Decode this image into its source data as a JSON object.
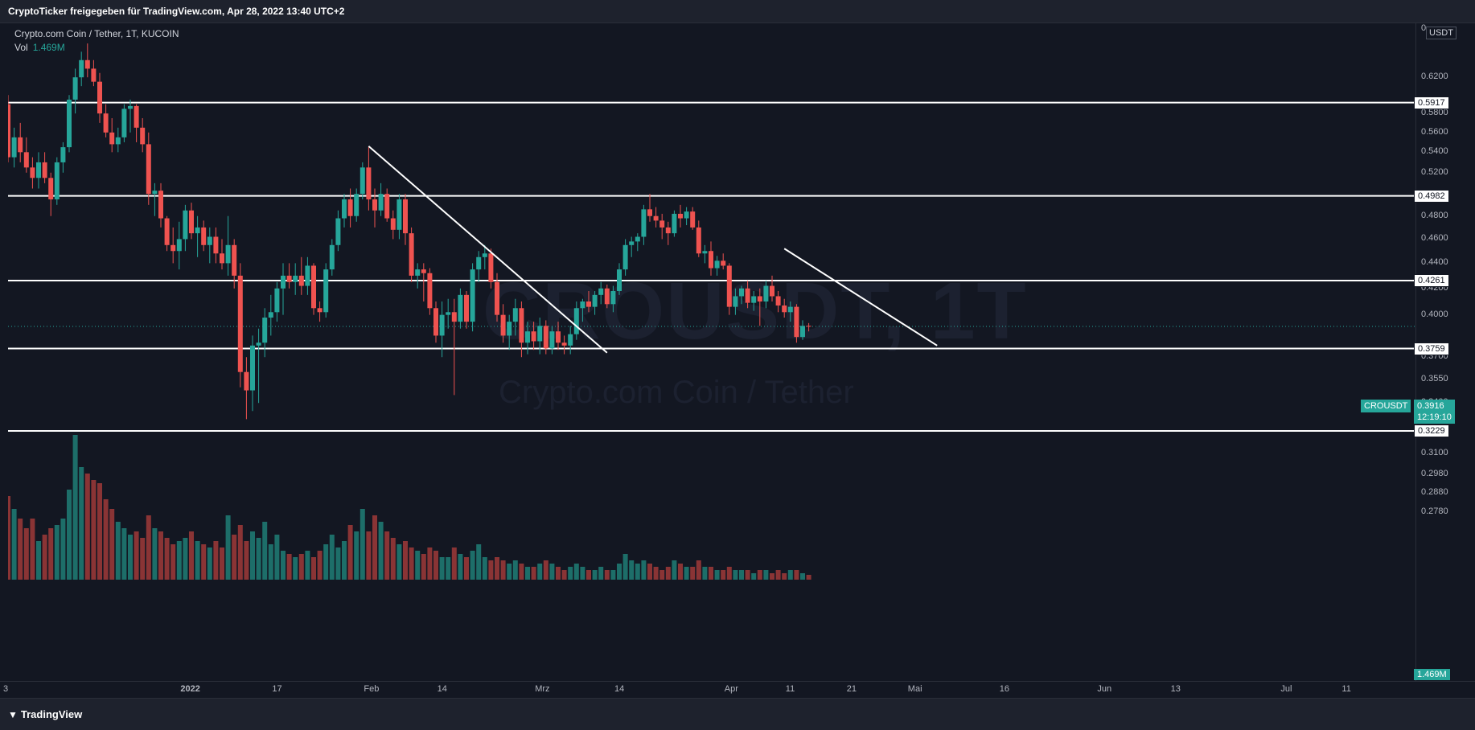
{
  "header": {
    "title": "CryptoTicker freigegeben für TradingView.com, Apr 28, 2022 13:40 UTC+2"
  },
  "legend": {
    "symbol_line": "Crypto.com Coin / Tether, 1T, KUCOIN",
    "vol_label": "Vol",
    "vol_value": "1.469M"
  },
  "watermark": {
    "big": "CROUSDT, 1T",
    "small": "Crypto.com Coin / Tether"
  },
  "axis": {
    "currency": "USDT",
    "top_partial": "0"
  },
  "current": {
    "symbol": "CROUSDT",
    "price": "0.3916",
    "countdown": "12:19:10",
    "volume": "1.469M"
  },
  "footer": {
    "brand": "TradingView"
  },
  "colors": {
    "up": "#26a69a",
    "down": "#ef5350",
    "bg": "#131722",
    "line": "#ffffff"
  },
  "chart_data": {
    "type": "candlestick",
    "symbol": "CROUSDT",
    "interval": "1T",
    "y_scale": "log",
    "y_ticks": [
      "0.6200",
      "0.5800",
      "0.5600",
      "0.5400",
      "0.5200",
      "0.4800",
      "0.4600",
      "0.4400",
      "0.4200",
      "0.4000",
      "0.3700",
      "0.3550",
      "0.3400",
      "0.3100",
      "0.2980",
      "0.2880",
      "0.2780"
    ],
    "x_ticks": [
      {
        "label": "3",
        "day": 0
      },
      {
        "label": "2022",
        "day": 29
      },
      {
        "label": "17",
        "day": 44
      },
      {
        "label": "Feb",
        "day": 59
      },
      {
        "label": "14",
        "day": 71
      },
      {
        "label": "Mrz",
        "day": 87
      },
      {
        "label": "14",
        "day": 100
      },
      {
        "label": "Apr",
        "day": 118
      },
      {
        "label": "11",
        "day": 128
      },
      {
        "label": "21",
        "day": 138
      },
      {
        "label": "Mai",
        "day": 148
      },
      {
        "label": "16",
        "day": 163
      },
      {
        "label": "Jun",
        "day": 179
      },
      {
        "label": "13",
        "day": 191
      },
      {
        "label": "Jul",
        "day": 209
      },
      {
        "label": "11",
        "day": 219
      }
    ],
    "horizontal_levels": [
      "0.5917",
      "0.4982",
      "0.4261",
      "0.3759",
      "0.3229"
    ],
    "trendlines": [
      {
        "from": {
          "day": 59,
          "price": 0.546
        },
        "to": {
          "day": 98,
          "price": 0.373
        }
      },
      {
        "from": {
          "day": 127,
          "price": 0.452
        },
        "to": {
          "day": 152,
          "price": 0.378
        }
      }
    ],
    "candles": [
      [
        0.59,
        0.6,
        0.53,
        0.535,
        2.6
      ],
      [
        0.535,
        0.565,
        0.525,
        0.555,
        2.2
      ],
      [
        0.555,
        0.57,
        0.53,
        0.54,
        1.9
      ],
      [
        0.54,
        0.555,
        0.52,
        0.525,
        1.6
      ],
      [
        0.525,
        0.535,
        0.505,
        0.515,
        1.9
      ],
      [
        0.515,
        0.54,
        0.505,
        0.53,
        1.2
      ],
      [
        0.53,
        0.54,
        0.51,
        0.515,
        1.4
      ],
      [
        0.515,
        0.52,
        0.48,
        0.495,
        1.6
      ],
      [
        0.495,
        0.535,
        0.49,
        0.53,
        1.7
      ],
      [
        0.53,
        0.55,
        0.52,
        0.545,
        1.9
      ],
      [
        0.545,
        0.6,
        0.54,
        0.595,
        2.8
      ],
      [
        0.595,
        0.63,
        0.58,
        0.62,
        4.5
      ],
      [
        0.62,
        0.65,
        0.61,
        0.64,
        3.5
      ],
      [
        0.64,
        0.66,
        0.62,
        0.63,
        3.3
      ],
      [
        0.63,
        0.64,
        0.61,
        0.615,
        3.1
      ],
      [
        0.615,
        0.625,
        0.57,
        0.58,
        3.0
      ],
      [
        0.58,
        0.59,
        0.555,
        0.56,
        2.5
      ],
      [
        0.56,
        0.575,
        0.54,
        0.548,
        2.2
      ],
      [
        0.548,
        0.565,
        0.54,
        0.555,
        1.8
      ],
      [
        0.555,
        0.59,
        0.55,
        0.585,
        1.6
      ],
      [
        0.585,
        0.595,
        0.56,
        0.588,
        1.4
      ],
      [
        0.588,
        0.59,
        0.55,
        0.565,
        1.5
      ],
      [
        0.565,
        0.575,
        0.54,
        0.548,
        1.3
      ],
      [
        0.548,
        0.56,
        0.49,
        0.5,
        2.0
      ],
      [
        0.5,
        0.51,
        0.48,
        0.503,
        1.6
      ],
      [
        0.503,
        0.51,
        0.47,
        0.478,
        1.5
      ],
      [
        0.478,
        0.48,
        0.45,
        0.455,
        1.3
      ],
      [
        0.455,
        0.47,
        0.44,
        0.45,
        1.1
      ],
      [
        0.45,
        0.475,
        0.435,
        0.46,
        1.2
      ],
      [
        0.46,
        0.49,
        0.45,
        0.485,
        1.3
      ],
      [
        0.485,
        0.492,
        0.46,
        0.465,
        1.5
      ],
      [
        0.465,
        0.48,
        0.445,
        0.47,
        1.2
      ],
      [
        0.47,
        0.476,
        0.45,
        0.455,
        1.1
      ],
      [
        0.455,
        0.47,
        0.44,
        0.462,
        1.0
      ],
      [
        0.462,
        0.47,
        0.44,
        0.448,
        1.2
      ],
      [
        0.448,
        0.46,
        0.435,
        0.44,
        1.0
      ],
      [
        0.44,
        0.48,
        0.43,
        0.455,
        2.0
      ],
      [
        0.455,
        0.46,
        0.42,
        0.43,
        1.4
      ],
      [
        0.43,
        0.44,
        0.35,
        0.36,
        1.7
      ],
      [
        0.36,
        0.37,
        0.33,
        0.348,
        1.2
      ],
      [
        0.348,
        0.385,
        0.335,
        0.378,
        1.5
      ],
      [
        0.378,
        0.39,
        0.34,
        0.38,
        1.3
      ],
      [
        0.38,
        0.405,
        0.37,
        0.398,
        1.8
      ],
      [
        0.398,
        0.415,
        0.385,
        0.402,
        1.1
      ],
      [
        0.402,
        0.425,
        0.395,
        0.42,
        1.4
      ],
      [
        0.42,
        0.44,
        0.4,
        0.43,
        0.9
      ],
      [
        0.43,
        0.44,
        0.42,
        0.425,
        0.8
      ],
      [
        0.425,
        0.44,
        0.415,
        0.43,
        0.7
      ],
      [
        0.43,
        0.445,
        0.415,
        0.422,
        0.8
      ],
      [
        0.422,
        0.445,
        0.415,
        0.438,
        0.9
      ],
      [
        0.438,
        0.44,
        0.4,
        0.405,
        0.7
      ],
      [
        0.405,
        0.41,
        0.395,
        0.402,
        0.9
      ],
      [
        0.402,
        0.44,
        0.398,
        0.435,
        1.1
      ],
      [
        0.435,
        0.46,
        0.43,
        0.455,
        1.4
      ],
      [
        0.455,
        0.485,
        0.45,
        0.478,
        1.0
      ],
      [
        0.478,
        0.5,
        0.47,
        0.495,
        1.2
      ],
      [
        0.495,
        0.505,
        0.47,
        0.48,
        1.7
      ],
      [
        0.48,
        0.505,
        0.475,
        0.5,
        1.5
      ],
      [
        0.5,
        0.53,
        0.495,
        0.525,
        2.2
      ],
      [
        0.525,
        0.545,
        0.485,
        0.495,
        1.5
      ],
      [
        0.495,
        0.505,
        0.47,
        0.485,
        2.0
      ],
      [
        0.485,
        0.51,
        0.48,
        0.5,
        1.8
      ],
      [
        0.5,
        0.505,
        0.475,
        0.478,
        1.5
      ],
      [
        0.478,
        0.485,
        0.46,
        0.468,
        1.3
      ],
      [
        0.468,
        0.5,
        0.46,
        0.495,
        1.1
      ],
      [
        0.495,
        0.5,
        0.455,
        0.465,
        1.2
      ],
      [
        0.465,
        0.47,
        0.425,
        0.43,
        1.0
      ],
      [
        0.43,
        0.44,
        0.42,
        0.435,
        0.9
      ],
      [
        0.435,
        0.44,
        0.41,
        0.432,
        0.8
      ],
      [
        0.432,
        0.436,
        0.4,
        0.405,
        1.0
      ],
      [
        0.405,
        0.41,
        0.38,
        0.385,
        0.9
      ],
      [
        0.385,
        0.41,
        0.37,
        0.4,
        0.7
      ],
      [
        0.4,
        0.412,
        0.39,
        0.402,
        0.7
      ],
      [
        0.402,
        0.412,
        0.345,
        0.395,
        1.0
      ],
      [
        0.395,
        0.42,
        0.39,
        0.415,
        0.8
      ],
      [
        0.415,
        0.418,
        0.39,
        0.395,
        0.7
      ],
      [
        0.395,
        0.44,
        0.388,
        0.435,
        0.9
      ],
      [
        0.435,
        0.45,
        0.425,
        0.445,
        1.1
      ],
      [
        0.445,
        0.455,
        0.435,
        0.448,
        0.7
      ],
      [
        0.448,
        0.452,
        0.42,
        0.425,
        0.6
      ],
      [
        0.425,
        0.432,
        0.395,
        0.4,
        0.7
      ],
      [
        0.4,
        0.408,
        0.38,
        0.385,
        0.6
      ],
      [
        0.385,
        0.4,
        0.375,
        0.395,
        0.5
      ],
      [
        0.395,
        0.412,
        0.385,
        0.405,
        0.6
      ],
      [
        0.405,
        0.41,
        0.37,
        0.38,
        0.5
      ],
      [
        0.38,
        0.395,
        0.372,
        0.388,
        0.4
      ],
      [
        0.388,
        0.395,
        0.375,
        0.381,
        0.4
      ],
      [
        0.381,
        0.398,
        0.372,
        0.392,
        0.5
      ],
      [
        0.392,
        0.396,
        0.372,
        0.376,
        0.6
      ],
      [
        0.376,
        0.392,
        0.372,
        0.388,
        0.5
      ],
      [
        0.388,
        0.395,
        0.375,
        0.38,
        0.4
      ],
      [
        0.38,
        0.385,
        0.372,
        0.378,
        0.3
      ],
      [
        0.378,
        0.392,
        0.372,
        0.386,
        0.4
      ],
      [
        0.386,
        0.41,
        0.382,
        0.405,
        0.5
      ],
      [
        0.405,
        0.412,
        0.395,
        0.41,
        0.4
      ],
      [
        0.41,
        0.418,
        0.402,
        0.406,
        0.3
      ],
      [
        0.406,
        0.418,
        0.4,
        0.415,
        0.3
      ],
      [
        0.415,
        0.425,
        0.408,
        0.42,
        0.4
      ],
      [
        0.42,
        0.423,
        0.405,
        0.408,
        0.3
      ],
      [
        0.408,
        0.422,
        0.402,
        0.418,
        0.3
      ],
      [
        0.418,
        0.44,
        0.415,
        0.435,
        0.5
      ],
      [
        0.435,
        0.46,
        0.43,
        0.455,
        0.8
      ],
      [
        0.455,
        0.462,
        0.445,
        0.458,
        0.6
      ],
      [
        0.458,
        0.465,
        0.45,
        0.462,
        0.5
      ],
      [
        0.462,
        0.49,
        0.455,
        0.486,
        0.6
      ],
      [
        0.486,
        0.5,
        0.475,
        0.48,
        0.5
      ],
      [
        0.48,
        0.488,
        0.47,
        0.476,
        0.4
      ],
      [
        0.476,
        0.482,
        0.46,
        0.47,
        0.3
      ],
      [
        0.47,
        0.475,
        0.455,
        0.465,
        0.4
      ],
      [
        0.465,
        0.485,
        0.462,
        0.482,
        0.6
      ],
      [
        0.482,
        0.49,
        0.47,
        0.478,
        0.5
      ],
      [
        0.478,
        0.488,
        0.472,
        0.484,
        0.4
      ],
      [
        0.484,
        0.488,
        0.468,
        0.47,
        0.4
      ],
      [
        0.47,
        0.476,
        0.445,
        0.448,
        0.6
      ],
      [
        0.448,
        0.455,
        0.44,
        0.45,
        0.4
      ],
      [
        0.45,
        0.458,
        0.43,
        0.436,
        0.4
      ],
      [
        0.436,
        0.446,
        0.43,
        0.442,
        0.3
      ],
      [
        0.442,
        0.448,
        0.435,
        0.438,
        0.3
      ],
      [
        0.438,
        0.44,
        0.4,
        0.406,
        0.4
      ],
      [
        0.406,
        0.42,
        0.4,
        0.414,
        0.3
      ],
      [
        0.414,
        0.422,
        0.408,
        0.42,
        0.3
      ],
      [
        0.42,
        0.426,
        0.405,
        0.409,
        0.3
      ],
      [
        0.409,
        0.418,
        0.403,
        0.414,
        0.2
      ],
      [
        0.414,
        0.42,
        0.392,
        0.41,
        0.3
      ],
      [
        0.41,
        0.426,
        0.405,
        0.422,
        0.3
      ],
      [
        0.422,
        0.43,
        0.41,
        0.414,
        0.2
      ],
      [
        0.414,
        0.418,
        0.402,
        0.407,
        0.3
      ],
      [
        0.407,
        0.412,
        0.398,
        0.402,
        0.2
      ],
      [
        0.402,
        0.41,
        0.395,
        0.406,
        0.3
      ],
      [
        0.406,
        0.408,
        0.38,
        0.384,
        0.3
      ],
      [
        0.384,
        0.396,
        0.382,
        0.392,
        0.2
      ],
      [
        0.392,
        0.394,
        0.388,
        0.3916,
        0.15
      ]
    ]
  }
}
